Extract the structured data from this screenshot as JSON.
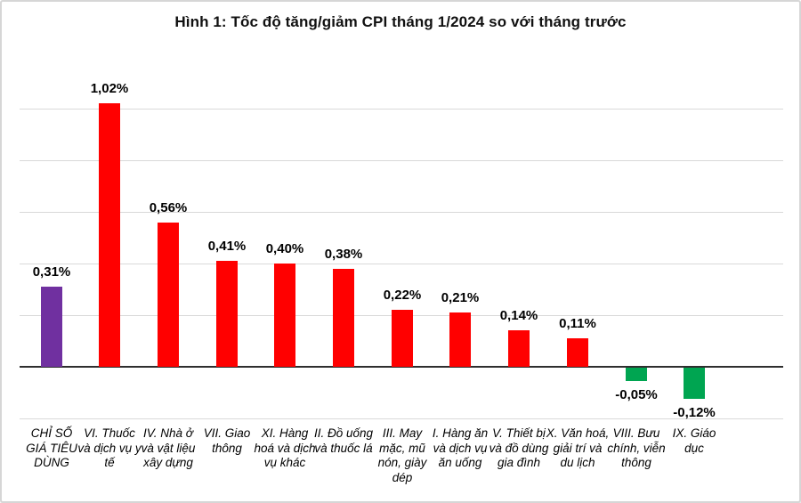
{
  "chart_data": {
    "type": "bar",
    "title": "Hình 1: Tốc độ tăng/giảm CPI tháng 1/2024 so với tháng trước",
    "categories": [
      "CHỈ SỐ GIÁ TIÊU DÙNG",
      "VI. Thuốc và dịch vụ y tế",
      "IV. Nhà ở và vật liệu xây dựng",
      "VII. Giao thông",
      "XI. Hàng hoá và dịch vụ khác",
      "II. Đồ uống và thuốc lá",
      "III. May mặc, mũ nón, giày dép",
      "I. Hàng ăn và dịch vụ ăn uống",
      "V. Thiết bị và đồ dùng gia đình",
      "X. Văn hoá, giải trí và du lịch",
      "VIII. Bưu chính, viễn thông",
      "IX. Giáo dục"
    ],
    "values": [
      0.31,
      1.02,
      0.56,
      0.41,
      0.4,
      0.38,
      0.22,
      0.21,
      0.14,
      0.11,
      -0.05,
      -0.12
    ],
    "value_labels": [
      "0,31%",
      "1,02%",
      "0,56%",
      "0,41%",
      "0,40%",
      "0,38%",
      "0,22%",
      "0,21%",
      "0,14%",
      "0,11%",
      "-0,05%",
      "-0,12%"
    ],
    "colors": [
      "#7030A0",
      "#FF0000",
      "#FF0000",
      "#FF0000",
      "#FF0000",
      "#FF0000",
      "#FF0000",
      "#FF0000",
      "#FF0000",
      "#FF0000",
      "#00A551",
      "#00A551"
    ],
    "xlabel": "",
    "ylabel": "",
    "ylim": [
      -0.2,
      1.0
    ],
    "gridline_step": 0.2,
    "grid": true,
    "legend_position": "none",
    "gridline_color": "#D9D9D9",
    "axis_color": "#2E2E2E",
    "value_label_color": "#000000",
    "category_label_color": "#000000"
  }
}
